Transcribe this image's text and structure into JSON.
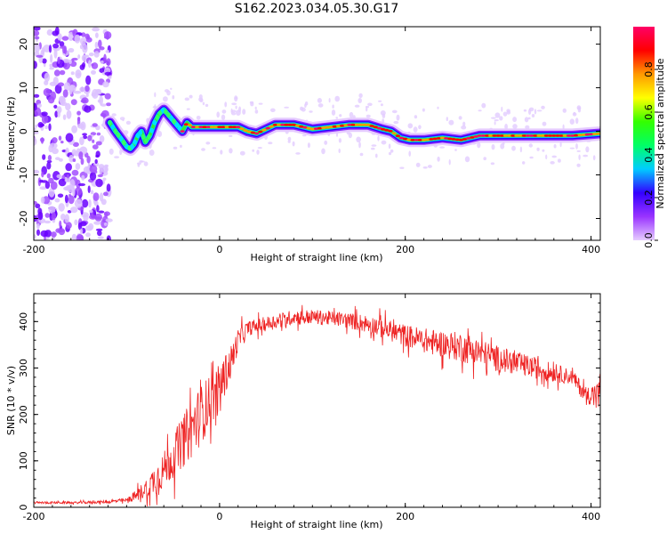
{
  "title": "S162.2023.034.05.30.G17",
  "chart_data": [
    {
      "type": "heatmap",
      "xlabel": "Height of straight line (km)",
      "ylabel": "Frequency (Hz)",
      "xlim": [
        -200,
        410
      ],
      "ylim": [
        -25,
        24
      ],
      "xticks": [
        -200,
        0,
        200,
        400
      ],
      "yticks": [
        -20,
        -10,
        0,
        10,
        20
      ],
      "colorbar": {
        "label": "Normalized spectral amplitude",
        "range": [
          0.0,
          1.0
        ],
        "ticks": [
          "0.0",
          "0.2",
          "0.4",
          "0.6",
          "0.8"
        ],
        "tick_values": [
          0.0,
          0.2,
          0.4,
          0.6,
          0.8
        ],
        "colors": [
          "#e6ccff",
          "#9933ff",
          "#3300ff",
          "#00ccff",
          "#00ff66",
          "#33ff00",
          "#ffff00",
          "#ff9900",
          "#ff0000",
          "#ff0066"
        ]
      },
      "noise_region_x": [
        -200,
        -118
      ],
      "ridge": {
        "name": "Dominant frequency",
        "x": [
          -118,
          -112,
          -105,
          -100,
          -96,
          -92,
          -88,
          -84,
          -80,
          -75,
          -70,
          -65,
          -60,
          -56,
          -52,
          -48,
          -44,
          -40,
          -35,
          -30,
          0,
          20,
          30,
          40,
          60,
          80,
          100,
          120,
          140,
          160,
          175,
          185,
          195,
          205,
          220,
          240,
          260,
          280,
          300,
          320,
          350,
          380,
          410
        ],
        "y": [
          2,
          0,
          -2,
          -3.5,
          -4,
          -3,
          -1,
          0,
          -2.5,
          -1,
          2,
          4,
          5,
          4,
          3,
          2,
          1,
          0,
          2,
          1,
          1,
          1,
          0,
          -0.5,
          1.5,
          1.5,
          0.5,
          1,
          1.5,
          1.5,
          0.5,
          0,
          -1.5,
          -2,
          -2,
          -1.5,
          -2,
          -1,
          -1,
          -1,
          -1,
          -1,
          -0.5
        ]
      }
    },
    {
      "type": "line",
      "xlabel": "Height of straight line (km)",
      "ylabel": "SNR (10 * v/v)",
      "xlim": [
        -200,
        410
      ],
      "ylim": [
        0,
        460
      ],
      "xticks": [
        -200,
        0,
        200,
        400
      ],
      "yticks": [
        0,
        100,
        200,
        300,
        400
      ],
      "color": "#ee2222",
      "series": [
        {
          "x": [
            -200,
            -150,
            -120,
            -100,
            -90,
            -80,
            -70,
            -60,
            -50,
            -40,
            -30,
            -20,
            -10,
            0,
            10,
            20,
            30,
            50,
            80,
            100,
            130,
            160,
            200,
            230,
            260,
            300,
            330,
            360,
            380,
            395,
            410
          ],
          "values": [
            10,
            10,
            12,
            15,
            25,
            40,
            60,
            80,
            110,
            140,
            170,
            200,
            230,
            260,
            300,
            360,
            385,
            395,
            410,
            410,
            405,
            395,
            370,
            355,
            345,
            320,
            305,
            290,
            280,
            240,
            250
          ],
          "noise": [
            3,
            3,
            4,
            6,
            15,
            25,
            40,
            50,
            60,
            70,
            80,
            80,
            70,
            60,
            50,
            30,
            20,
            20,
            20,
            20,
            20,
            25,
            30,
            35,
            40,
            35,
            30,
            25,
            20,
            25,
            30
          ]
        }
      ]
    }
  ]
}
